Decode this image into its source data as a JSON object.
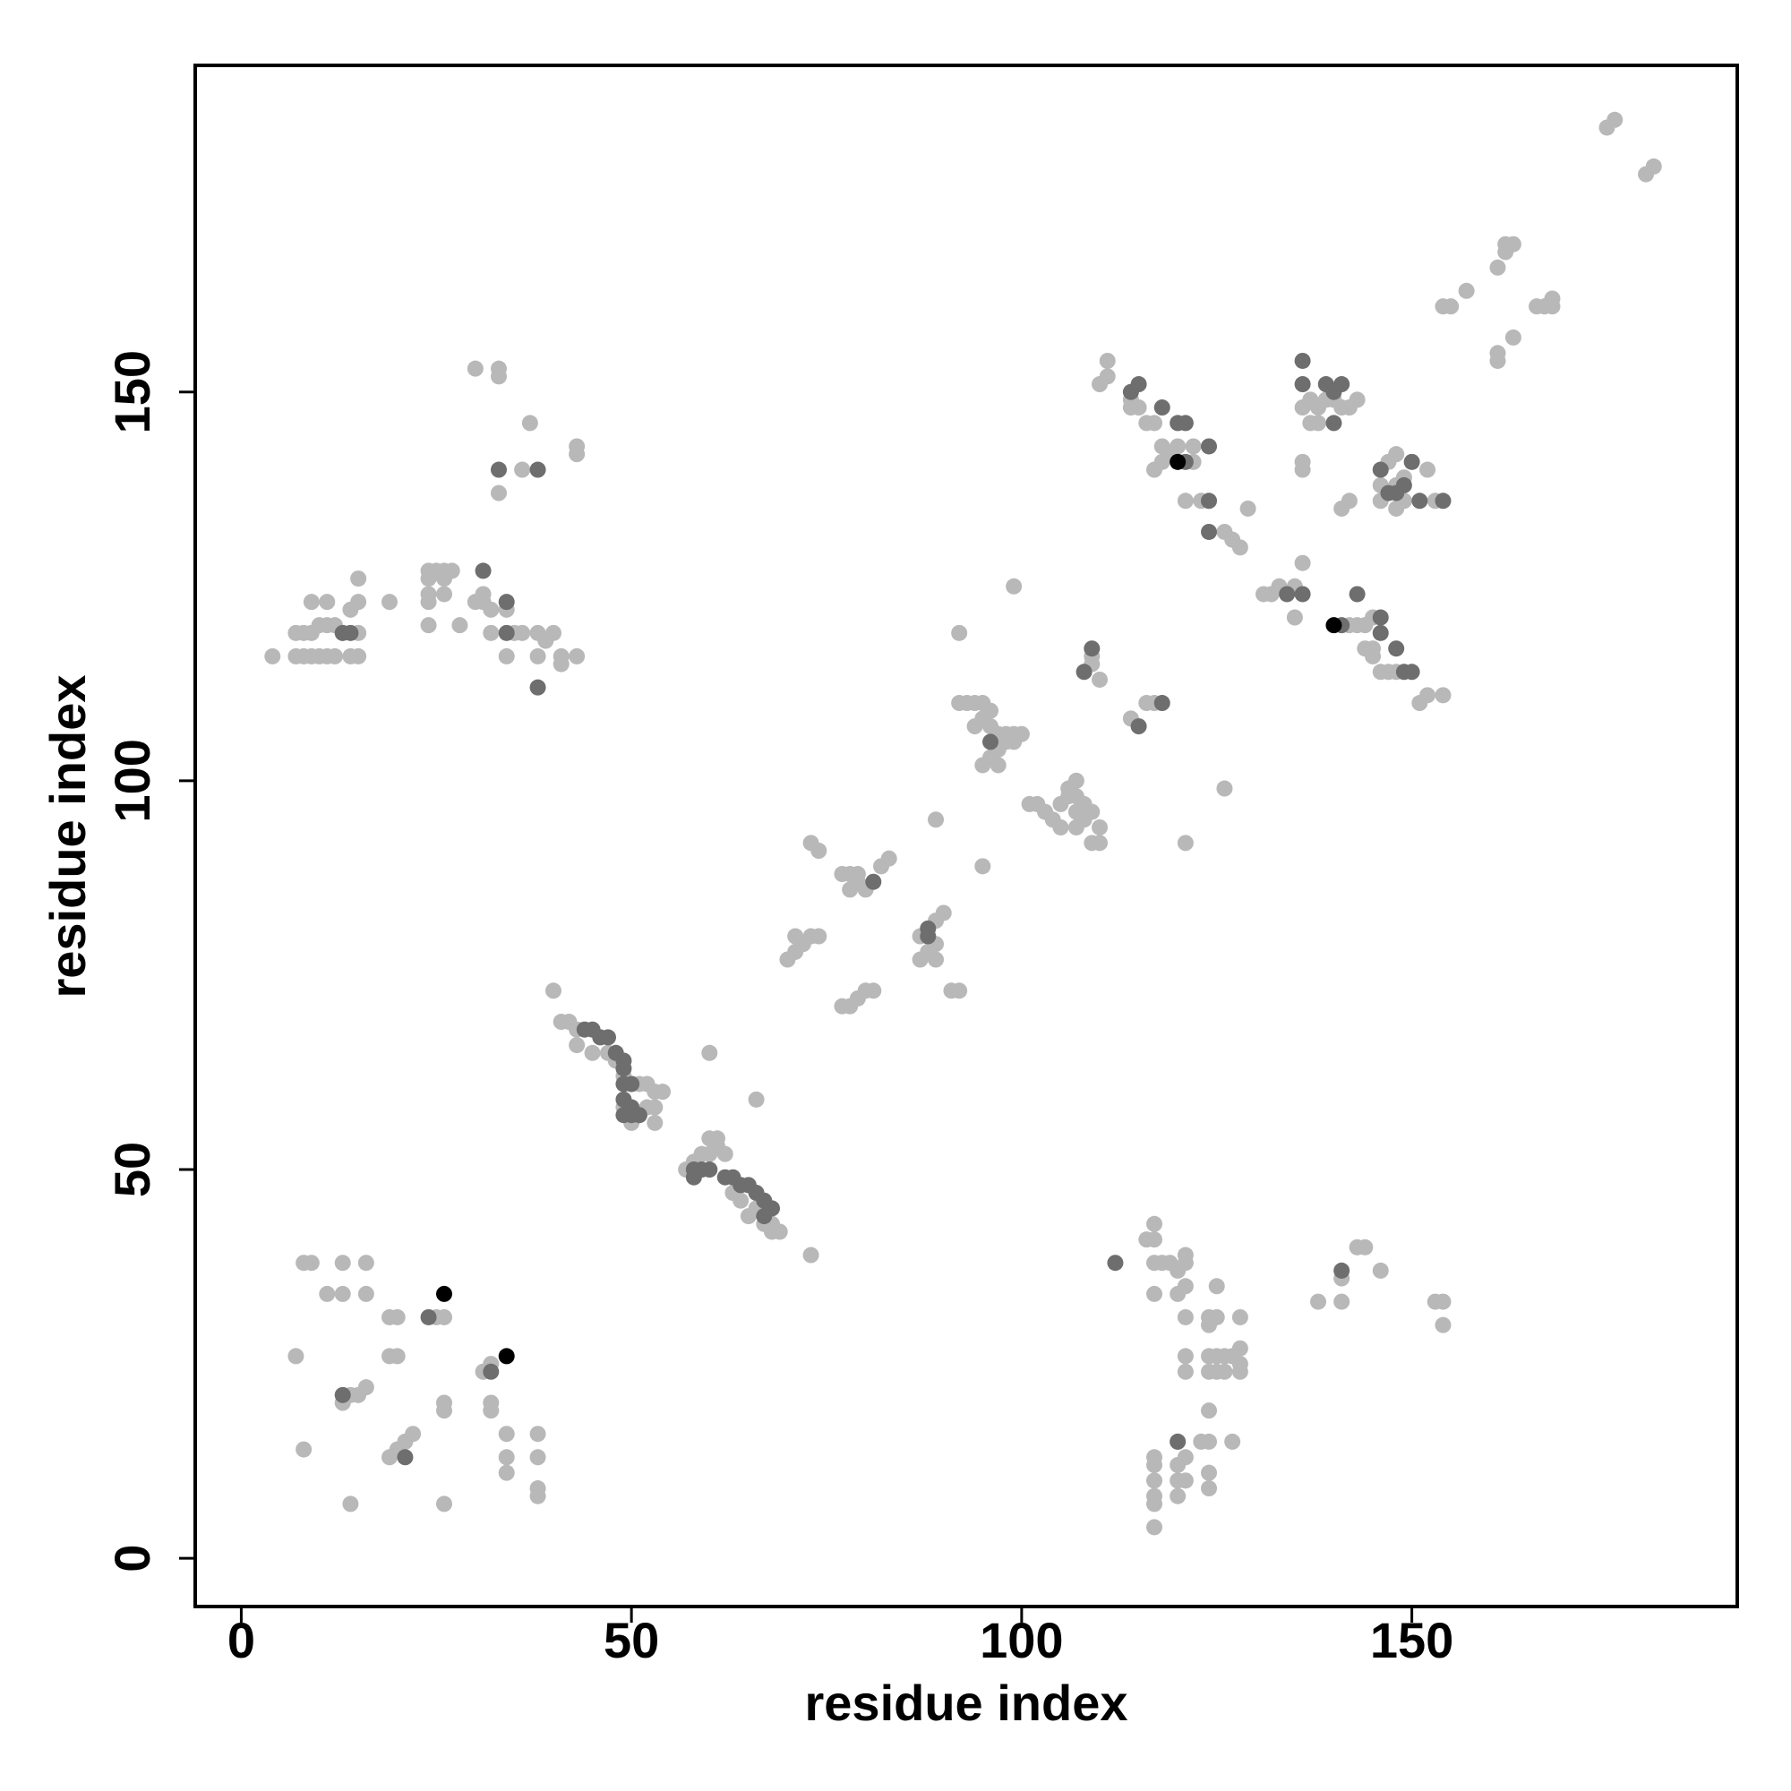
{
  "chart_data": {
    "type": "scatter",
    "x_label": "residue index",
    "y_label": "residue index",
    "xlim": [
      -5.9,
      191.7
    ],
    "ylim": [
      -6.2,
      192
    ],
    "xticks": [
      0,
      50,
      100,
      150
    ],
    "yticks": [
      0,
      50,
      100,
      150
    ],
    "series": [
      {
        "color": "#b8b8b8",
        "x": [
          8,
          9,
          13,
          16,
          11,
          13,
          16,
          7,
          19,
          20,
          19,
          20,
          25,
          26,
          13,
          14,
          15,
          16,
          14,
          8,
          19,
          20,
          21,
          22,
          26,
          26,
          32,
          32,
          31,
          32,
          34,
          34,
          34,
          38,
          38,
          38,
          38,
          26,
          116,
          117,
          117,
          117,
          118,
          117,
          117,
          117,
          117,
          117,
          117,
          117,
          120,
          120,
          120,
          120,
          121,
          121,
          120,
          121,
          121,
          121,
          120,
          119,
          121,
          121,
          121,
          123,
          124,
          124,
          124,
          124,
          124,
          124,
          125,
          125,
          125,
          125,
          124,
          124,
          126,
          126,
          127,
          128,
          128,
          128,
          128,
          127,
          138,
          141,
          141,
          143,
          144,
          146,
          153,
          154,
          154,
          40,
          41,
          42,
          43,
          43,
          45,
          47,
          48,
          49,
          50,
          51,
          52,
          53,
          54,
          49,
          50,
          51,
          52,
          53,
          53,
          60,
          66,
          57,
          58,
          59,
          60,
          61,
          60,
          61,
          62,
          65,
          66,
          67,
          68,
          68,
          69,
          73,
          63,
          64,
          70,
          71,
          71,
          72,
          73,
          74,
          73,
          74,
          77,
          78,
          79,
          78,
          79,
          82,
          83,
          80,
          77,
          78,
          79,
          80,
          81,
          87,
          89,
          90,
          87,
          89,
          89,
          88,
          91,
          92,
          89,
          95,
          92,
          92,
          93,
          94,
          95,
          96,
          95,
          96,
          97,
          98,
          99,
          100,
          97,
          98,
          99,
          96,
          95,
          97,
          94,
          99,
          101,
          102,
          103,
          104,
          105,
          106,
          106,
          107,
          107,
          107,
          108,
          108,
          109,
          110,
          110,
          109,
          105,
          107,
          110,
          109,
          114,
          116,
          117,
          121,
          126,
          109,
          4,
          7,
          8,
          9,
          10,
          11,
          12,
          14,
          15,
          7,
          8,
          9,
          10,
          11,
          12,
          15,
          9,
          11,
          14,
          15,
          15,
          19,
          24,
          24,
          24,
          24,
          24,
          25,
          26,
          26,
          26,
          27,
          28,
          30,
          31,
          31,
          32,
          32,
          35,
          34,
          36,
          38,
          38,
          39,
          40,
          41,
          41,
          43,
          34,
          30,
          33,
          33,
          33,
          36,
          37,
          43,
          43,
          110,
          111,
          111,
          114,
          116,
          115,
          117,
          118,
          118,
          119,
          120,
          122,
          121,
          122,
          117,
          114,
          123,
          126,
          127,
          128,
          129,
          131,
          132,
          133,
          135,
          136,
          135,
          136,
          136,
          137,
          136,
          137,
          138,
          138,
          139,
          141,
          140,
          142,
          143,
          141,
          142,
          144,
          145,
          142,
          143,
          144,
          145,
          146,
          147,
          148,
          151,
          152,
          154,
          145,
          146,
          146,
          147,
          148,
          148,
          149,
          148,
          149,
          152,
          153,
          154,
          155,
          157,
          162,
          162,
          163,
          161,
          161,
          161,
          163,
          166,
          167,
          168,
          168,
          175,
          176,
          180,
          181
        ],
        "values": [
          38,
          38,
          38,
          38,
          34,
          34,
          34,
          26,
          31,
          31,
          26,
          26,
          31,
          31,
          20,
          21,
          21,
          22,
          7,
          14,
          13,
          14,
          15,
          16,
          20,
          19,
          20,
          19,
          24,
          25,
          16,
          13,
          11,
          16,
          13,
          9,
          8,
          7,
          41,
          41,
          43,
          38,
          38,
          34,
          13,
          12,
          10,
          8,
          7,
          4,
          15,
          12,
          10,
          8,
          13,
          10,
          34,
          35,
          38,
          39,
          37,
          38,
          31,
          26,
          24,
          15,
          15,
          19,
          24,
          26,
          30,
          31,
          35,
          31,
          26,
          24,
          11,
          9,
          24,
          26,
          15,
          24,
          25,
          27,
          31,
          26,
          33,
          33,
          36,
          40,
          40,
          37,
          33,
          33,
          30,
          73,
          69,
          69,
          68,
          66,
          65,
          65,
          64,
          62,
          61,
          61,
          61,
          60,
          60,
          58,
          56,
          57,
          58,
          58,
          56,
          65,
          59,
          50,
          51,
          52,
          52,
          53,
          54,
          54,
          52,
          44,
          45,
          43,
          42,
          43,
          42,
          39,
          47,
          46,
          77,
          78,
          80,
          79,
          80,
          80,
          92,
          91,
          88,
          88,
          88,
          86,
          87,
          89,
          90,
          86,
          71,
          71,
          72,
          73,
          73,
          80,
          82,
          83,
          77,
          77,
          79,
          78,
          73,
          73,
          95,
          89,
          119,
          110,
          110,
          110,
          110,
          109,
          108,
          107,
          106,
          106,
          106,
          106,
          104,
          105,
          105,
          103,
          102,
          102,
          107,
          125,
          97,
          97,
          96,
          95,
          97,
          98,
          99,
          100,
          98,
          96,
          97,
          95,
          96,
          94,
          92,
          92,
          94,
          94,
          113,
          115,
          108,
          110,
          110,
          92,
          99,
          116,
          116,
          116,
          116,
          116,
          116,
          116,
          116,
          116,
          116,
          119,
          119,
          119,
          120,
          120,
          120,
          119,
          123,
          123,
          122,
          123,
          126,
          123,
          120,
          123,
          124,
          126,
          127,
          127,
          126,
          124,
          127,
          127,
          120,
          123,
          123,
          124,
          122,
          119,
          119,
          116,
          119,
          119,
          116,
          118,
          119,
          115,
          116,
          116,
          122,
          153,
          153,
          152,
          137,
          140,
          146,
          143,
          142,
          151,
          152,
          154,
          149,
          146,
          148,
          146,
          143,
          141,
          142,
          143,
          141,
          136,
          143,
          140,
          148,
          136,
          132,
          131,
          130,
          135,
          124,
          124,
          125,
          125,
          128,
          121,
          140,
          141,
          146,
          148,
          149,
          148,
          146,
          149,
          148,
          149,
          148,
          149,
          135,
          136,
          120,
          121,
          120,
          120,
          117,
          116,
          114,
          114,
          114,
          110,
          111,
          111,
          117,
          138,
          136,
          141,
          142,
          138,
          139,
          135,
          136,
          140,
          136,
          161,
          161,
          163,
          168,
          169,
          169,
          166,
          155,
          154,
          157,
          161,
          161,
          162,
          161,
          184,
          185,
          178,
          179
        ]
      },
      {
        "color": "#6e6e6e",
        "x": [
          13,
          21,
          24,
          32,
          112,
          120,
          141,
          44,
          45,
          46,
          47,
          48,
          49,
          49,
          49,
          50,
          49,
          50,
          49,
          50,
          51,
          58,
          59,
          60,
          62,
          63,
          64,
          65,
          66,
          67,
          68,
          67,
          58,
          81,
          88,
          88,
          96,
          109,
          108,
          115,
          118,
          13,
          14,
          31,
          34,
          34,
          38,
          33,
          38,
          114,
          115,
          118,
          120,
          121,
          121,
          124,
          124,
          124,
          136,
          136,
          139,
          141,
          140,
          140,
          134,
          136,
          143,
          141,
          146,
          146,
          148,
          149,
          150,
          147,
          148,
          149,
          150,
          151,
          154,
          146
        ],
        "values": [
          21,
          13,
          31,
          24,
          38,
          15,
          37,
          68,
          68,
          67,
          67,
          65,
          64,
          63,
          61,
          61,
          59,
          58,
          57,
          57,
          57,
          49,
          50,
          50,
          49,
          49,
          48,
          48,
          47,
          46,
          45,
          44,
          50,
          87,
          80,
          81,
          105,
          117,
          114,
          107,
          110,
          119,
          119,
          127,
          123,
          119,
          112,
          140,
          140,
          150,
          151,
          148,
          146,
          146,
          141,
          143,
          136,
          132,
          154,
          151,
          151,
          151,
          150,
          146,
          124,
          124,
          124,
          120,
          121,
          119,
          117,
          114,
          114,
          137,
          137,
          138,
          141,
          136,
          136,
          140
        ]
      },
      {
        "color": "#000000",
        "x": [
          26,
          34,
          120,
          140
        ],
        "values": [
          34,
          26,
          141,
          120
        ]
      }
    ]
  }
}
